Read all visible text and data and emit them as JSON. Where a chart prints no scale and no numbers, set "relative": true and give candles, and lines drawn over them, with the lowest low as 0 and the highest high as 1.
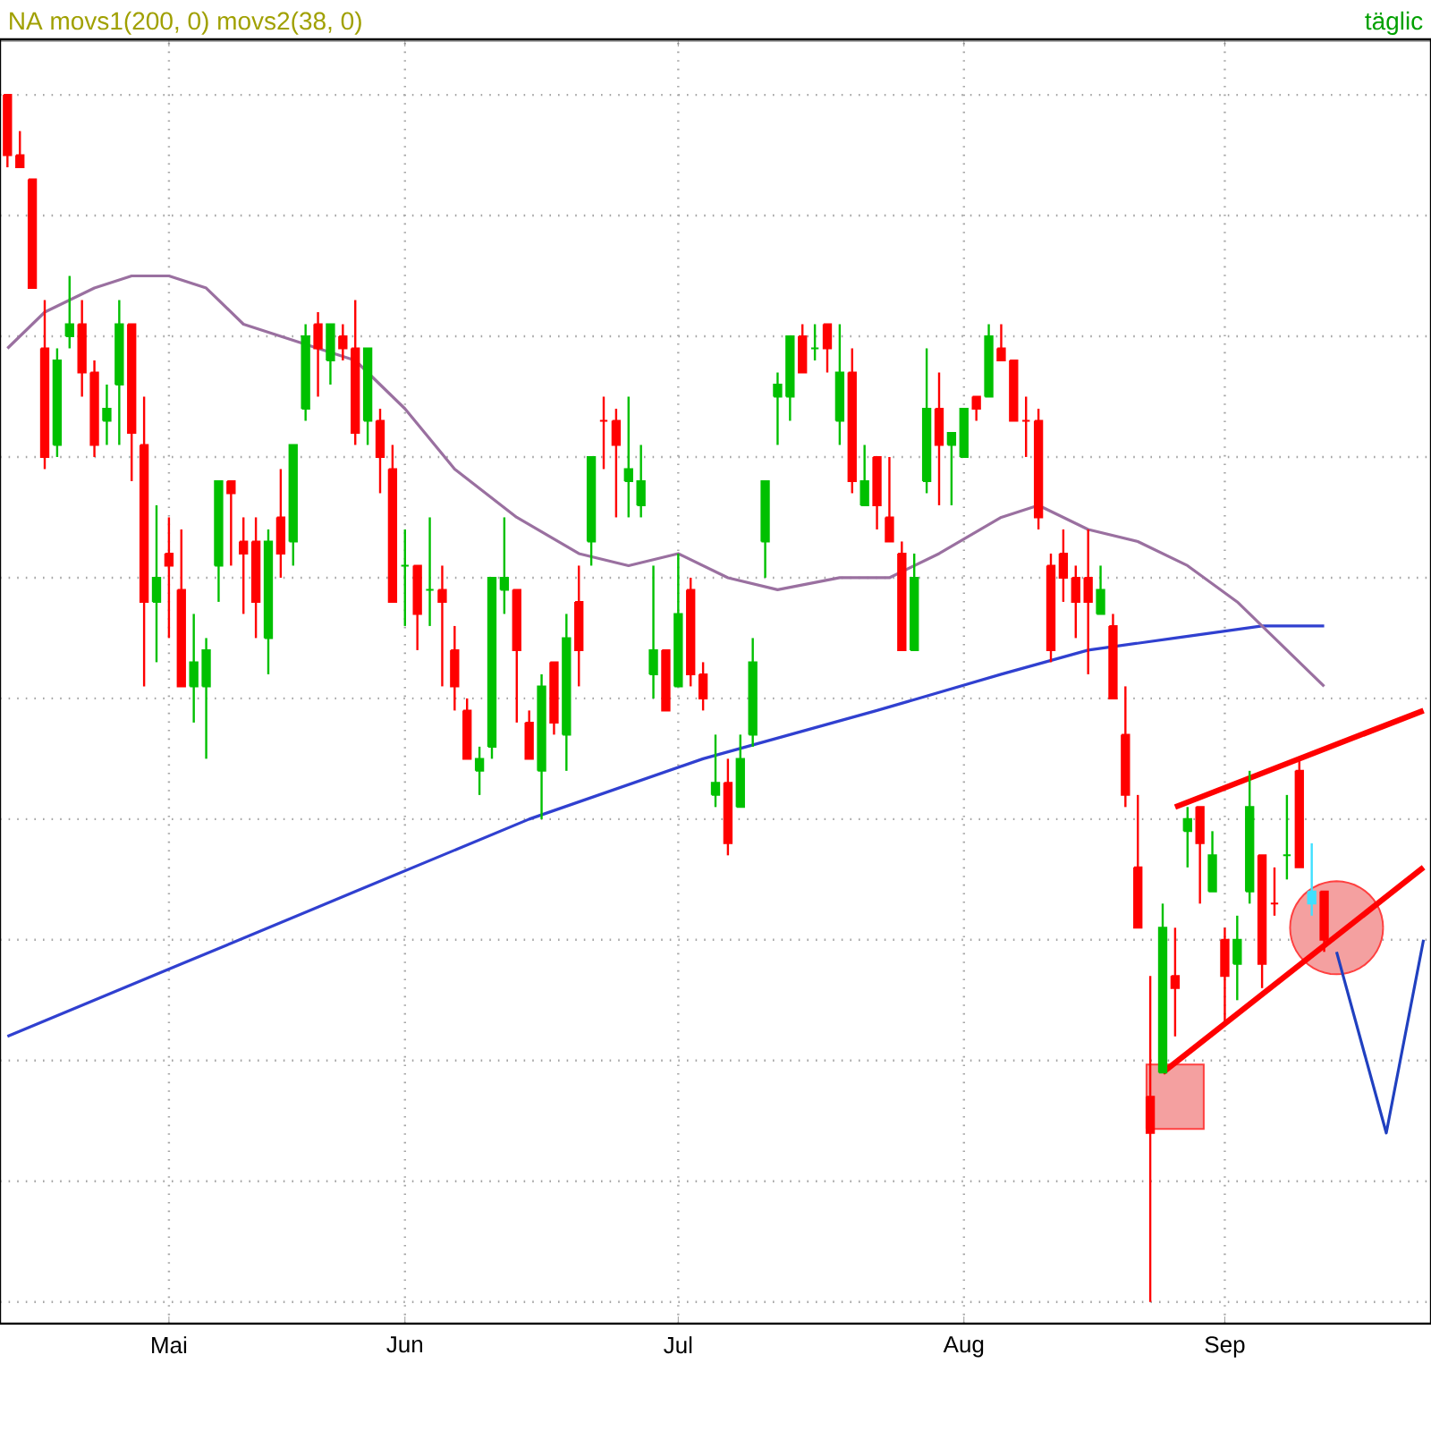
{
  "chart_data": {
    "type": "candlestick",
    "relative": true,
    "grid": true,
    "annotations": [
      "NA movs1(200, 0) movs2(38, 0)",
      "täglic"
    ],
    "categories": [
      null,
      null,
      null,
      null,
      null,
      null,
      null,
      null,
      null,
      null,
      null,
      null,
      null,
      "Mai",
      null,
      null,
      null,
      null,
      null,
      null,
      null,
      null,
      null,
      null,
      null,
      null,
      null,
      null,
      null,
      null,
      null,
      null,
      "Jun",
      null,
      null,
      null,
      null,
      null,
      null,
      null,
      null,
      null,
      null,
      null,
      null,
      null,
      null,
      null,
      null,
      null,
      null,
      null,
      null,
      null,
      "Jul",
      null,
      null,
      null,
      null,
      null,
      null,
      null,
      null,
      null,
      null,
      null,
      null,
      null,
      null,
      null,
      null,
      null,
      null,
      null,
      null,
      null,
      null,
      "Aug",
      null,
      null,
      null,
      null,
      null,
      null,
      null,
      null,
      null,
      null,
      null,
      null,
      null,
      null,
      null,
      null,
      null,
      null,
      null,
      null,
      "Sep",
      null,
      null,
      null,
      null,
      null,
      null,
      null,
      null,
      null,
      null,
      null,
      null,
      null,
      null,
      null,
      null
    ],
    "ohlc": [
      [
        1.0,
        1.0,
        0.94,
        0.95
      ],
      [
        0.95,
        0.97,
        0.94,
        0.94
      ],
      [
        0.93,
        0.93,
        0.84,
        0.84
      ],
      [
        0.79,
        0.83,
        0.69,
        0.7
      ],
      [
        0.71,
        0.79,
        0.7,
        0.78
      ],
      [
        0.8,
        0.85,
        0.79,
        0.81
      ],
      [
        0.81,
        0.83,
        0.75,
        0.77
      ],
      [
        0.77,
        0.78,
        0.7,
        0.71
      ],
      [
        0.73,
        0.76,
        0.71,
        0.74
      ],
      [
        0.76,
        0.83,
        0.71,
        0.81
      ],
      [
        0.81,
        0.81,
        0.68,
        0.72
      ],
      [
        0.71,
        0.75,
        0.51,
        0.58
      ],
      [
        0.58,
        0.66,
        0.53,
        0.6
      ],
      [
        0.62,
        0.65,
        0.55,
        0.61
      ],
      [
        0.59,
        0.64,
        0.51,
        0.51
      ],
      [
        0.51,
        0.57,
        0.48,
        0.53
      ],
      [
        0.51,
        0.55,
        0.45,
        0.54
      ],
      [
        0.61,
        0.68,
        0.58,
        0.68
      ],
      [
        0.68,
        0.68,
        0.61,
        0.67
      ],
      [
        0.63,
        0.65,
        0.57,
        0.62
      ],
      [
        0.63,
        0.65,
        0.55,
        0.58
      ],
      [
        0.55,
        0.64,
        0.52,
        0.63
      ],
      [
        0.65,
        0.69,
        0.6,
        0.62
      ],
      [
        0.63,
        0.71,
        0.61,
        0.71
      ],
      [
        0.74,
        0.81,
        0.73,
        0.8
      ],
      [
        0.81,
        0.82,
        0.75,
        0.79
      ],
      [
        0.78,
        0.81,
        0.76,
        0.81
      ],
      [
        0.8,
        0.81,
        0.78,
        0.79
      ],
      [
        0.79,
        0.83,
        0.71,
        0.72
      ],
      [
        0.73,
        0.79,
        0.71,
        0.79
      ],
      [
        0.73,
        0.74,
        0.67,
        0.7
      ],
      [
        0.69,
        0.71,
        0.58,
        0.58
      ],
      [
        0.61,
        0.64,
        0.56,
        0.61
      ],
      [
        0.61,
        0.61,
        0.54,
        0.57
      ],
      [
        0.59,
        0.65,
        0.56,
        0.59
      ],
      [
        0.59,
        0.61,
        0.51,
        0.58
      ],
      [
        0.54,
        0.56,
        0.49,
        0.51
      ],
      [
        0.49,
        0.5,
        0.45,
        0.45
      ],
      [
        0.44,
        0.46,
        0.42,
        0.45
      ],
      [
        0.46,
        0.6,
        0.45,
        0.6
      ],
      [
        0.59,
        0.65,
        0.57,
        0.6
      ],
      [
        0.59,
        0.59,
        0.48,
        0.54
      ],
      [
        0.48,
        0.49,
        0.45,
        0.45
      ],
      [
        0.44,
        0.52,
        0.4,
        0.51
      ],
      [
        0.53,
        0.53,
        0.47,
        0.48
      ],
      [
        0.47,
        0.57,
        0.44,
        0.55
      ],
      [
        0.58,
        0.61,
        0.51,
        0.54
      ],
      [
        0.63,
        0.7,
        0.61,
        0.7
      ],
      [
        0.73,
        0.75,
        0.69,
        0.73
      ],
      [
        0.73,
        0.74,
        0.65,
        0.71
      ],
      [
        0.68,
        0.75,
        0.65,
        0.69
      ],
      [
        0.66,
        0.71,
        0.65,
        0.68
      ],
      [
        0.52,
        0.61,
        0.5,
        0.54
      ],
      [
        0.54,
        0.54,
        0.49,
        0.49
      ],
      [
        0.51,
        0.62,
        0.51,
        0.57
      ],
      [
        0.59,
        0.6,
        0.51,
        0.52
      ],
      [
        0.52,
        0.53,
        0.49,
        0.5
      ],
      [
        0.42,
        0.47,
        0.41,
        0.43
      ],
      [
        0.43,
        0.45,
        0.37,
        0.38
      ],
      [
        0.41,
        0.47,
        0.41,
        0.45
      ],
      [
        0.47,
        0.55,
        0.46,
        0.53
      ],
      [
        0.63,
        0.68,
        0.6,
        0.68
      ],
      [
        0.75,
        0.77,
        0.71,
        0.76
      ],
      [
        0.75,
        0.8,
        0.73,
        0.8
      ],
      [
        0.8,
        0.81,
        0.77,
        0.77
      ],
      [
        0.79,
        0.81,
        0.78,
        0.79
      ],
      [
        0.81,
        0.81,
        0.77,
        0.79
      ],
      [
        0.73,
        0.81,
        0.71,
        0.77
      ],
      [
        0.77,
        0.79,
        0.67,
        0.68
      ],
      [
        0.66,
        0.71,
        0.66,
        0.68
      ],
      [
        0.7,
        0.7,
        0.64,
        0.66
      ],
      [
        0.65,
        0.7,
        0.63,
        0.63
      ],
      [
        0.62,
        0.63,
        0.54,
        0.54
      ],
      [
        0.54,
        0.62,
        0.54,
        0.6
      ],
      [
        0.68,
        0.79,
        0.67,
        0.74
      ],
      [
        0.74,
        0.77,
        0.66,
        0.71
      ],
      [
        0.71,
        0.72,
        0.66,
        0.72
      ],
      [
        0.7,
        0.74,
        0.7,
        0.74
      ],
      [
        0.75,
        0.75,
        0.73,
        0.74
      ],
      [
        0.75,
        0.81,
        0.75,
        0.8
      ],
      [
        0.79,
        0.81,
        0.78,
        0.78
      ],
      [
        0.78,
        0.78,
        0.73,
        0.73
      ],
      [
        0.73,
        0.75,
        0.7,
        0.73
      ],
      [
        0.73,
        0.74,
        0.64,
        0.65
      ],
      [
        0.61,
        0.62,
        0.53,
        0.54
      ],
      [
        0.62,
        0.64,
        0.58,
        0.6
      ],
      [
        0.6,
        0.61,
        0.55,
        0.58
      ],
      [
        0.6,
        0.64,
        0.52,
        0.58
      ],
      [
        0.57,
        0.61,
        0.57,
        0.59
      ],
      [
        0.56,
        0.57,
        0.5,
        0.5
      ],
      [
        0.47,
        0.51,
        0.41,
        0.42
      ],
      [
        0.36,
        0.42,
        0.31,
        0.31
      ],
      [
        0.17,
        0.27,
        0,
        0.14
      ],
      [
        0.19,
        0.33,
        0.19,
        0.31
      ],
      [
        0.27,
        0.31,
        0.22,
        0.26
      ],
      [
        0.39,
        0.41,
        0.36,
        0.4
      ],
      [
        0.41,
        0.41,
        0.33,
        0.38
      ],
      [
        0.34,
        0.39,
        0.34,
        0.37
      ],
      [
        0.3,
        0.31,
        0.23,
        0.27
      ],
      [
        0.28,
        0.32,
        0.25,
        0.3
      ],
      [
        0.34,
        0.44,
        0.33,
        0.41
      ],
      [
        0.37,
        0.37,
        0.26,
        0.28
      ],
      [
        0.33,
        0.36,
        0.32,
        0.33
      ],
      [
        0.37,
        0.42,
        0.35,
        0.37
      ],
      [
        0.44,
        0.45,
        0.36,
        0.36
      ],
      [
        0.34,
        0.38,
        0.32,
        0.33
      ],
      [
        0.34,
        0.34,
        0.29,
        0.3
      ],
      null,
      null,
      null,
      null,
      null,
      null,
      null,
      null
    ],
    "colors": [
      "#ff0000",
      "#ff0000",
      "#ff0000",
      "#ff0000",
      "#00c000",
      "#00c000",
      "#ff0000",
      "#ff0000",
      "#00c000",
      "#00c000",
      "#ff0000",
      "#ff0000",
      "#00c000",
      "#ff0000",
      "#ff0000",
      "#00c000",
      "#00c000",
      "#00c000",
      "#ff0000",
      "#ff0000",
      "#ff0000",
      "#00c000",
      "#ff0000",
      "#00c000",
      "#00c000",
      "#ff0000",
      "#00c000",
      "#ff0000",
      "#ff0000",
      "#00c000",
      "#ff0000",
      "#ff0000",
      "#00c000",
      "#ff0000",
      "#00c000",
      "#ff0000",
      "#ff0000",
      "#ff0000",
      "#00c000",
      "#00c000",
      "#00c000",
      "#ff0000",
      "#ff0000",
      "#00c000",
      "#ff0000",
      "#00c000",
      "#ff0000",
      "#00c000",
      "#ff0000",
      "#ff0000",
      "#00c000",
      "#00c000",
      "#00c000",
      "#ff0000",
      "#00c000",
      "#ff0000",
      "#ff0000",
      "#00c000",
      "#ff0000",
      "#00c000",
      "#00c000",
      "#00c000",
      "#00c000",
      "#00c000",
      "#ff0000",
      "#00c000",
      "#ff0000",
      "#00c000",
      "#ff0000",
      "#00c000",
      "#ff0000",
      "#ff0000",
      "#ff0000",
      "#00c000",
      "#00c000",
      "#ff0000",
      "#00c000",
      "#00c000",
      "#ff0000",
      "#00c000",
      "#ff0000",
      "#ff0000",
      "#ff0000",
      "#ff0000",
      "#ff0000",
      "#ff0000",
      "#ff0000",
      "#ff0000",
      "#00c000",
      "#ff0000",
      "#ff0000",
      "#ff0000",
      "#ff0000",
      "#00c000",
      "#ff0000",
      "#00c000",
      "#ff0000",
      "#00c000",
      "#ff0000",
      "#00c000",
      "#00c000",
      "#ff0000",
      "#ff0000",
      "#00c000",
      "#ff0000",
      "#40e0ff",
      "#ff0000",
      null,
      null,
      null,
      null,
      null,
      null,
      null,
      null
    ],
    "series": [
      {
        "type": "line",
        "color": "#3040d0",
        "values": [
          0.22,
          null,
          null,
          null,
          null,
          null,
          null,
          null,
          null,
          null,
          null,
          null,
          null,
          null,
          0.28,
          null,
          null,
          null,
          null,
          null,
          null,
          null,
          null,
          null,
          null,
          null,
          null,
          null,
          0.34,
          null,
          null,
          null,
          null,
          null,
          null,
          null,
          null,
          null,
          null,
          null,
          null,
          null,
          0.4,
          null,
          null,
          null,
          null,
          null,
          null,
          null,
          null,
          null,
          null,
          null,
          null,
          null,
          0.45,
          null,
          null,
          null,
          null,
          null,
          null,
          null,
          null,
          null,
          null,
          null,
          null,
          null,
          0.49,
          null,
          null,
          null,
          null,
          null,
          null,
          null,
          null,
          null,
          0.52,
          null,
          null,
          null,
          null,
          null,
          null,
          0.54,
          null,
          null,
          null,
          null,
          null,
          null,
          0.55,
          null,
          null,
          null,
          null,
          null,
          null,
          0.56,
          null,
          null,
          null,
          null,
          0.56,
          null,
          null,
          null,
          null,
          null,
          null,
          null,
          null
        ]
      },
      {
        "type": "line",
        "color": "#9a70a0",
        "values": [
          0.79,
          null,
          null,
          0.82,
          null,
          null,
          null,
          0.84,
          null,
          null,
          0.85,
          null,
          null,
          0.85,
          null,
          null,
          0.84,
          null,
          null,
          0.81,
          null,
          null,
          0.8,
          null,
          null,
          0.79,
          null,
          null,
          0.78,
          null,
          null,
          null,
          0.74,
          null,
          null,
          null,
          0.69,
          null,
          null,
          null,
          null,
          0.65,
          null,
          null,
          null,
          null,
          0.62,
          null,
          null,
          null,
          0.61,
          null,
          null,
          null,
          0.62,
          null,
          null,
          null,
          0.6,
          null,
          null,
          null,
          0.59,
          null,
          null,
          null,
          null,
          0.6,
          null,
          null,
          null,
          0.6,
          null,
          null,
          null,
          0.62,
          null,
          null,
          null,
          null,
          0.65,
          null,
          null,
          0.66,
          null,
          null,
          null,
          0.64,
          null,
          null,
          null,
          0.63,
          null,
          null,
          null,
          0.61,
          null,
          null,
          null,
          0.58,
          null,
          null,
          0.55,
          null,
          null,
          null,
          0.51,
          null,
          null,
          null,
          null,
          null,
          null,
          null,
          null
        ]
      },
      {
        "type": "line",
        "color": "#ff0000",
        "values": [
          null,
          null,
          null,
          null,
          null,
          null,
          null,
          null,
          null,
          null,
          null,
          null,
          null,
          null,
          null,
          null,
          null,
          null,
          null,
          null,
          null,
          null,
          null,
          null,
          null,
          null,
          null,
          null,
          null,
          null,
          null,
          null,
          null,
          null,
          null,
          null,
          null,
          null,
          null,
          null,
          null,
          null,
          null,
          null,
          null,
          null,
          null,
          null,
          null,
          null,
          null,
          null,
          null,
          null,
          null,
          null,
          null,
          null,
          null,
          null,
          null,
          null,
          null,
          null,
          null,
          null,
          null,
          null,
          null,
          null,
          null,
          null,
          null,
          null,
          null,
          null,
          null,
          null,
          null,
          null,
          null,
          null,
          null,
          null,
          null,
          null,
          null,
          null,
          null,
          null,
          null,
          null,
          null,
          null,
          0.41,
          null,
          null,
          null,
          null,
          null,
          null,
          null,
          null,
          null,
          null,
          null,
          null,
          null,
          null,
          null,
          null,
          null,
          null,
          null,
          0.49
        ]
      },
      {
        "type": "line",
        "color": "#ff0000",
        "values": [
          null,
          null,
          null,
          null,
          null,
          null,
          null,
          null,
          null,
          null,
          null,
          null,
          null,
          null,
          null,
          null,
          null,
          null,
          null,
          null,
          null,
          null,
          null,
          null,
          null,
          null,
          null,
          null,
          null,
          null,
          null,
          null,
          null,
          null,
          null,
          null,
          null,
          null,
          null,
          null,
          null,
          null,
          null,
          null,
          null,
          null,
          null,
          null,
          null,
          null,
          null,
          null,
          null,
          null,
          null,
          null,
          null,
          null,
          null,
          null,
          null,
          null,
          null,
          null,
          null,
          null,
          null,
          null,
          null,
          null,
          null,
          null,
          null,
          null,
          null,
          null,
          null,
          null,
          null,
          null,
          null,
          null,
          null,
          null,
          null,
          null,
          null,
          null,
          null,
          null,
          null,
          null,
          null,
          0.19,
          null,
          null,
          null,
          null,
          null,
          null,
          null,
          null,
          null,
          null,
          null,
          null,
          null,
          null,
          null,
          null,
          null,
          null,
          null,
          null,
          0.36
        ]
      },
      {
        "type": "line",
        "color": "#2040c0",
        "values": [
          null,
          null,
          null,
          null,
          null,
          null,
          null,
          null,
          null,
          null,
          null,
          null,
          null,
          null,
          null,
          null,
          null,
          null,
          null,
          null,
          null,
          null,
          null,
          null,
          null,
          null,
          null,
          null,
          null,
          null,
          null,
          null,
          null,
          null,
          null,
          null,
          null,
          null,
          null,
          null,
          null,
          null,
          null,
          null,
          null,
          null,
          null,
          null,
          null,
          null,
          null,
          null,
          null,
          null,
          null,
          null,
          null,
          null,
          null,
          null,
          null,
          null,
          null,
          null,
          null,
          null,
          null,
          null,
          null,
          null,
          null,
          null,
          null,
          null,
          null,
          null,
          null,
          null,
          null,
          null,
          null,
          null,
          null,
          null,
          null,
          null,
          null,
          null,
          null,
          null,
          null,
          null,
          null,
          null,
          null,
          null,
          null,
          null,
          null,
          null,
          null,
          null,
          null,
          null,
          null,
          null,
          null,
          0.29,
          null,
          null,
          null,
          0.14,
          null,
          null,
          0.3
        ]
      },
      {
        "type": "scatter",
        "marker": "circle",
        "color": "#f4a0a0",
        "values": [
          null,
          null,
          null,
          null,
          null,
          null,
          null,
          null,
          null,
          null,
          null,
          null,
          null,
          null,
          null,
          null,
          null,
          null,
          null,
          null,
          null,
          null,
          null,
          null,
          null,
          null,
          null,
          null,
          null,
          null,
          null,
          null,
          null,
          null,
          null,
          null,
          null,
          null,
          null,
          null,
          null,
          null,
          null,
          null,
          null,
          null,
          null,
          null,
          null,
          null,
          null,
          null,
          null,
          null,
          null,
          null,
          null,
          null,
          null,
          null,
          null,
          null,
          null,
          null,
          null,
          null,
          null,
          null,
          null,
          null,
          null,
          null,
          null,
          null,
          null,
          null,
          null,
          null,
          null,
          null,
          null,
          null,
          null,
          null,
          null,
          null,
          null,
          null,
          null,
          null,
          null,
          null,
          null,
          null,
          null,
          null,
          null,
          null,
          null,
          null,
          null,
          null,
          null,
          null,
          null,
          null,
          null,
          0.31,
          null,
          null,
          null,
          null,
          null,
          null,
          null
        ]
      },
      {
        "type": "scatter",
        "marker": "square",
        "color": "#f4a0a0",
        "values": [
          null,
          null,
          null,
          null,
          null,
          null,
          null,
          null,
          null,
          null,
          null,
          null,
          null,
          null,
          null,
          null,
          null,
          null,
          null,
          null,
          null,
          null,
          null,
          null,
          null,
          null,
          null,
          null,
          null,
          null,
          null,
          null,
          null,
          null,
          null,
          null,
          null,
          null,
          null,
          null,
          null,
          null,
          null,
          null,
          null,
          null,
          null,
          null,
          null,
          null,
          null,
          null,
          null,
          null,
          null,
          null,
          null,
          null,
          null,
          null,
          null,
          null,
          null,
          null,
          null,
          null,
          null,
          null,
          null,
          null,
          null,
          null,
          null,
          null,
          null,
          null,
          null,
          null,
          null,
          null,
          null,
          null,
          null,
          null,
          null,
          null,
          null,
          null,
          null,
          null,
          null,
          null,
          null,
          null,
          0.17,
          null,
          null,
          null,
          null,
          null,
          null,
          null,
          null,
          null,
          null,
          null,
          null,
          null,
          null,
          null,
          null,
          null,
          null,
          null,
          null
        ]
      }
    ]
  }
}
